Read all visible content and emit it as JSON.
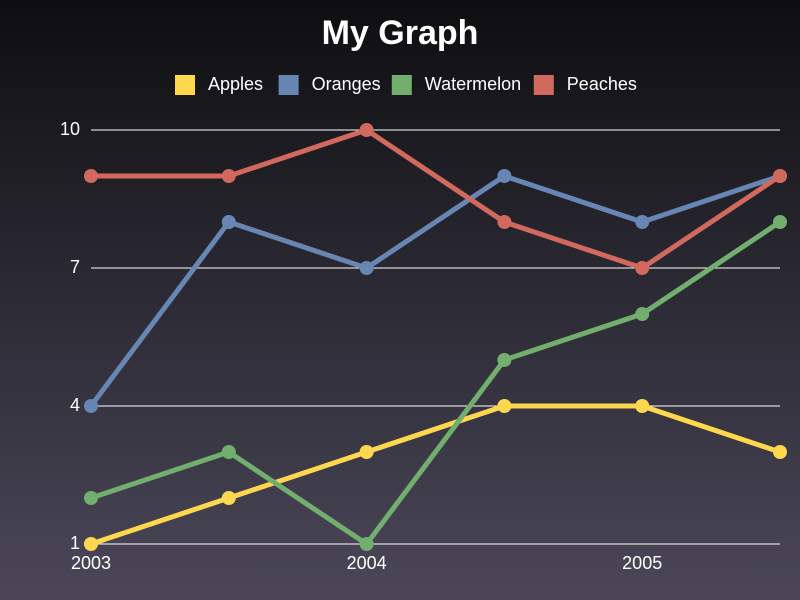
{
  "chart_data": {
    "type": "line",
    "title": "My Graph",
    "categories": [
      "2003",
      null,
      "2004",
      null,
      "2005",
      null
    ],
    "series": [
      {
        "name": "Apples",
        "color": "#fdd84e",
        "values": [
          1,
          2,
          3,
          4,
          4,
          3
        ]
      },
      {
        "name": "Oranges",
        "color": "#6886b4",
        "values": [
          4,
          8,
          7,
          9,
          8,
          9
        ]
      },
      {
        "name": "Watermelon",
        "color": "#72ae6e",
        "values": [
          2,
          3,
          1,
          5,
          6,
          8
        ]
      },
      {
        "name": "Peaches",
        "color": "#d1695e",
        "values": [
          9,
          9,
          10,
          8,
          7,
          9
        ]
      }
    ],
    "ylim": [
      1,
      10
    ],
    "yticks": [
      1,
      4,
      7,
      10
    ],
    "grid": true,
    "legend": "top"
  }
}
